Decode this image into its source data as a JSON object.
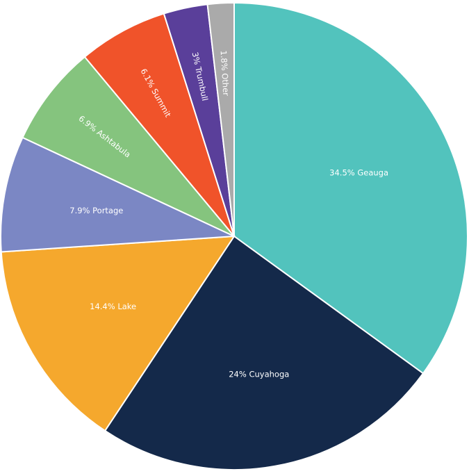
{
  "chart_data": {
    "type": "pie",
    "categories": [
      "Geauga",
      "Cuyahoga",
      "Lake",
      "Portage",
      "Ashtabula",
      "Summit",
      "Trumbull",
      "Other"
    ],
    "values": [
      34.5,
      24,
      14.4,
      7.9,
      6.9,
      6.1,
      3,
      1.8
    ],
    "value_labels": [
      "34.5%",
      "24%",
      "14.4%",
      "7.9%",
      "6.9%",
      "6.1%",
      "3%",
      "1.8%"
    ],
    "colors": [
      "#52c3bd",
      "#14294a",
      "#f5a82d",
      "#7b87c4",
      "#85c47e",
      "#f0532a",
      "#5a3f9a",
      "#aaaaaa"
    ]
  }
}
